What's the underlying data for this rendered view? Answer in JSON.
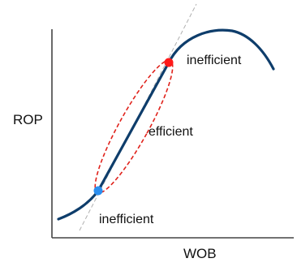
{
  "axes": {
    "x_label": "WOB",
    "y_label": "ROP"
  },
  "regions": {
    "upper": "inefficient",
    "middle": "efficient",
    "lower": "inefficient"
  },
  "colors": {
    "axis": "#444444",
    "curve": "#0e3d6b",
    "tangent": "#b0b0b0",
    "ellipse": "#e0221b",
    "upper_point": "#ff1a1a",
    "lower_point": "#2b8ff0"
  }
}
